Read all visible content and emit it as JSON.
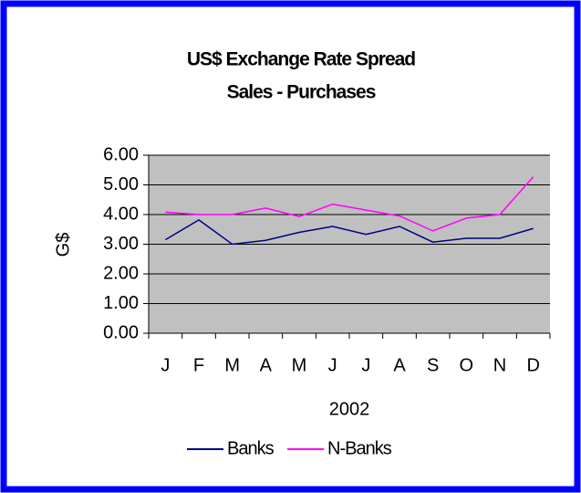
{
  "chart_data": {
    "type": "line",
    "title": [
      "US$ Exchange Rate Spread",
      "Sales - Purchases"
    ],
    "y_label": "G$",
    "x_label": "2002",
    "categories": [
      "J",
      "F",
      "M",
      "A",
      "M",
      "J",
      "J",
      "A",
      "S",
      "O",
      "N",
      "D"
    ],
    "series": [
      {
        "name": "Banks",
        "color": "#000080",
        "values": [
          3.15,
          3.82,
          3.0,
          3.13,
          3.4,
          3.6,
          3.33,
          3.6,
          3.07,
          3.2,
          3.2,
          3.53
        ]
      },
      {
        "name": "N-Banks",
        "color": "#ff00ff",
        "values": [
          4.08,
          4.0,
          4.0,
          4.22,
          3.93,
          4.35,
          4.15,
          3.95,
          3.45,
          3.88,
          4.0,
          5.27
        ]
      }
    ],
    "ylim": [
      0,
      6
    ],
    "yticks": [
      {
        "value": 0,
        "label": "0.00"
      },
      {
        "value": 1,
        "label": "1.00"
      },
      {
        "value": 2,
        "label": "2.00"
      },
      {
        "value": 3,
        "label": "3.00"
      },
      {
        "value": 4,
        "label": "4.00"
      },
      {
        "value": 5,
        "label": "5.00"
      },
      {
        "value": 6,
        "label": "6.00"
      }
    ],
    "grid": true,
    "legend": "bottom"
  }
}
